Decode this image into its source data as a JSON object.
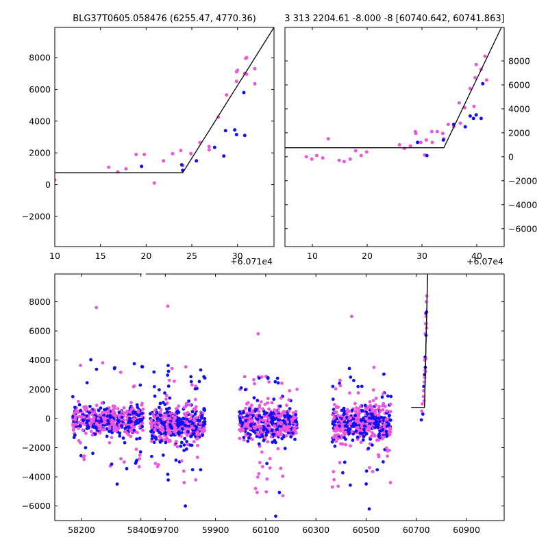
{
  "chart_data": [
    {
      "type": "scatter",
      "title": "BLG37T0605.058476 (6255.47, 4770.36)",
      "x_offset_label": "+6.071e4",
      "xlim": [
        10,
        34
      ],
      "ylim": [
        -3900,
        9900
      ],
      "xticks": [
        10,
        15,
        20,
        25,
        30
      ],
      "yticks": [
        -2000,
        0,
        2000,
        4000,
        6000,
        8000
      ],
      "grid": false,
      "legend": "none",
      "series": [
        {
          "color": "#ee55dd",
          "x": [
            10.0,
            15.9,
            16.9,
            17.8,
            18.9,
            19.8,
            20.9,
            21.9,
            22.9,
            23.8,
            24.9,
            25.9,
            26.9,
            27.9,
            28.8,
            29.9,
            30.8,
            31.9,
            29.9,
            30.9,
            31.9,
            30.0,
            31.0,
            24.0,
            26.9,
            31.0
          ],
          "y": [
            300,
            1100,
            800,
            1000,
            1900,
            1900,
            100,
            1500,
            1950,
            2150,
            1950,
            2650,
            2400,
            4250,
            5650,
            6500,
            7000,
            7300,
            7100,
            7950,
            6350,
            7200,
            6950,
            1200,
            2200,
            8000
          ]
        },
        {
          "color": "#1111ee",
          "x": [
            19.5,
            23.9,
            25.5,
            27.5,
            28.5,
            28.7,
            29.7,
            29.9,
            30.7,
            30.8,
            24.0
          ],
          "y": [
            1150,
            1250,
            1500,
            2350,
            1800,
            3400,
            3450,
            3150,
            5800,
            3100,
            900
          ]
        }
      ],
      "model_line": {
        "color": "#000000",
        "x": [
          10,
          24,
          34
        ],
        "y": [
          750,
          750,
          9900
        ]
      }
    },
    {
      "type": "scatter",
      "title": "3 313 2204.61 -8.000 -8 [60740.642, 60741.863]",
      "x_offset_label": "+6.07e4",
      "xlim": [
        5,
        45
      ],
      "ylim": [
        -7500,
        10800
      ],
      "xticks": [
        10,
        20,
        30,
        40
      ],
      "yticks": [
        -6000,
        -4000,
        -2000,
        0,
        2000,
        4000,
        6000,
        8000
      ],
      "y_axis_side": "right",
      "grid": false,
      "legend": "none",
      "series": [
        {
          "color": "#ee55dd",
          "x": [
            8.9,
            9.9,
            10.8,
            11.9,
            12.9,
            14.9,
            15.8,
            16.9,
            17.9,
            18.9,
            19.9,
            25.9,
            26.8,
            27.9,
            28.8,
            29.8,
            30.8,
            31.8,
            32.8,
            33.8,
            34.8,
            35.8,
            36.8,
            37.8,
            38.8,
            39.7,
            40.8,
            41.8,
            28.9,
            31.9,
            34.0,
            37.0,
            39.5,
            41.5,
            39.9,
            30.5
          ],
          "y": [
            0,
            -200,
            100,
            -100,
            1500,
            -300,
            -400,
            -200,
            500,
            100,
            400,
            1000,
            700,
            900,
            2100,
            1200,
            1400,
            2100,
            2100,
            1950,
            2700,
            2500,
            4500,
            4100,
            5700,
            6600,
            7300,
            6400,
            1950,
            1200,
            1500,
            2800,
            4200,
            8400,
            7700,
            150
          ]
        },
        {
          "color": "#1111ee",
          "x": [
            29.2,
            33.9,
            35.8,
            37.9,
            38.8,
            39.4,
            39.9,
            40.8,
            41.1,
            30.9
          ],
          "y": [
            1200,
            1400,
            2700,
            2500,
            3400,
            3200,
            3500,
            3200,
            6100,
            100
          ]
        }
      ],
      "model_line": {
        "color": "#000000",
        "x": [
          5,
          34,
          44.5
        ],
        "y": [
          750,
          750,
          10800
        ]
      }
    },
    {
      "type": "scatter",
      "title": "",
      "xlim": [
        58110,
        61050
      ],
      "ylim": [
        -7000,
        9900
      ],
      "xticks": [
        58200,
        58400,
        59700,
        59900,
        60100,
        60300,
        60500,
        60700,
        60900
      ],
      "xtick_labels": [
        "58200",
        "58400",
        "59700",
        "59900",
        "60100",
        "60300",
        "60500",
        "60700",
        "60900"
      ],
      "yticks": [
        -6000,
        -4000,
        -2000,
        0,
        2000,
        4000,
        6000,
        8000
      ],
      "axis_break_between": [
        58400,
        59700
      ],
      "grid": false,
      "legend": "none",
      "seasons": [
        {
          "x_range": [
            58170,
            58410
          ],
          "center": -100,
          "core_spread": 500,
          "tail_max": 7600,
          "tail_min": -4500
        },
        {
          "x_range": [
            59640,
            59860
          ],
          "center": -400,
          "core_spread": 600,
          "tail_max": 7700,
          "tail_min": -6000
        },
        {
          "x_range": [
            59995,
            60225
          ],
          "center": -300,
          "core_spread": 600,
          "tail_max": 5800,
          "tail_min": -6700
        },
        {
          "x_range": [
            60365,
            60600
          ],
          "center": -300,
          "core_spread": 650,
          "tail_max": 7000,
          "tail_min": -6200
        }
      ],
      "event_points": {
        "x": [
          60720,
          60722,
          60724,
          60726,
          60728,
          60729,
          60730,
          60731,
          60732,
          60733,
          60734,
          60734,
          60735,
          60735,
          60736,
          60736,
          60737,
          60737,
          60738,
          60738,
          60739,
          60739,
          60740,
          60740,
          60741,
          60741,
          60742
        ],
        "y": [
          -100,
          500,
          1000,
          300,
          1500,
          1900,
          2200,
          1200,
          2500,
          3000,
          4000,
          2800,
          4200,
          3300,
          5800,
          3500,
          6500,
          3200,
          7200,
          4100,
          7000,
          5700,
          8000,
          6500,
          7300,
          6200,
          8400
        ]
      },
      "model_line": {
        "color": "#000000",
        "x": [
          60680,
          60733,
          60745
        ],
        "y": [
          750,
          750,
          9900
        ]
      }
    }
  ]
}
